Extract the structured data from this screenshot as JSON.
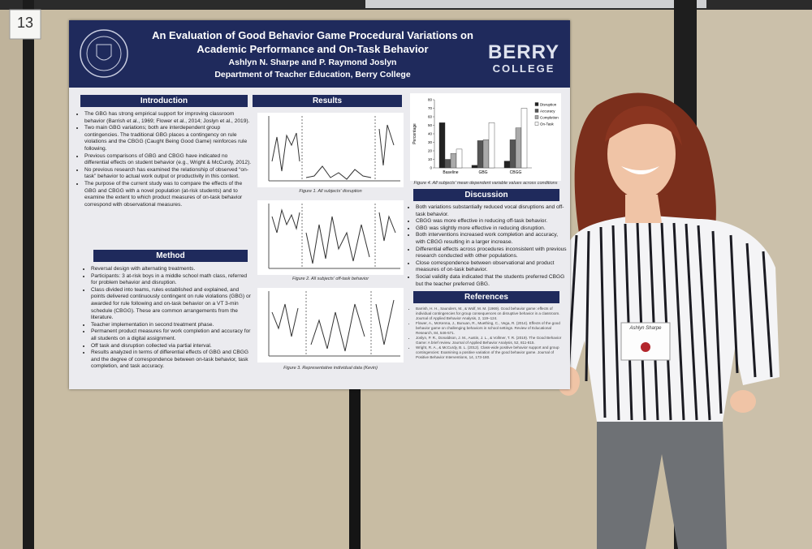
{
  "card_number": "13",
  "poster": {
    "title": "An Evaluation of Good Behavior Game Procedural Variations on Academic Performance and On-Task Behavior",
    "authors": "Ashlyn N. Sharpe and P. Raymond Joslyn",
    "affiliation": "Department of Teacher Education, Berry College",
    "logo": [
      "BERRY",
      "COLLEGE"
    ],
    "introduction": {
      "heading": "Introduction",
      "bullets": [
        "The GBG has strong empirical support for improving classroom behavior (Barrish et al., 1969; Flower et al., 2014; Joslyn et al., 2019).",
        "Two main GBG variations; both are interdependent group contingencies. The traditional GBG places a contingency on rule violations and the CBGG (Caught Being Good Game) reinforces rule following.",
        "Previous comparisons of GBG and CBGG have indicated no differential effects on student behavior (e.g., Wright & McCurdy, 2012).",
        "No previous research has examined the relationship of observed “on-task” behavior to actual work output or productivity in this context.",
        "The purpose of the current study was to compare the effects of the GBG and CBGG with a novel population (at-risk students) and to examine the extent to which product measures of on-task behavior correspond with observational measures."
      ]
    },
    "method": {
      "heading": "Method",
      "bullets": [
        "Reversal design with alternating treatments.",
        "Participants: 3 at-risk boys in a middle school math class, referred for problem behavior and disruption.",
        "Class divided into teams, rules established and explained, and points delivered continuously contingent on rule violations (GBG) or awarded for rule following and on-task behavior on a VT 3-min schedule (CBGG). These are common arrangements from the literature.",
        "Teacher implementation in second treatment phase.",
        "Permanent product measures for work completion and accuracy for all students on a digital assignment.",
        "Off task and disruption collected via partial interval.",
        "Results analyzed in terms of differential effects of GBG and CBGG and the degree of correspondence between on-task behavior, task completion, and task accuracy."
      ]
    },
    "results": {
      "heading": "Results",
      "captions": [
        "Figure 1. All subjects' disruption",
        "Figure 2. All subjects' off-task behavior",
        "Figure 3. Representative individual data (Kevin)"
      ]
    },
    "figure_4": {
      "type": "bar",
      "caption": "Figure 4. All subjects' mean dependent variable values across conditions",
      "ylabel": "Percentage",
      "categories": [
        "Baseline",
        "GBG",
        "CBGG"
      ],
      "ylim": [
        0,
        80
      ],
      "yticks": [
        0,
        10,
        20,
        30,
        40,
        50,
        60,
        70,
        80
      ],
      "series": [
        {
          "name": "Disruption",
          "color": "#222222",
          "values": [
            53,
            3,
            8
          ]
        },
        {
          "name": "Accuracy",
          "color": "#555555",
          "values": [
            10,
            32,
            33
          ]
        },
        {
          "name": "Completion",
          "color": "#aaaaaa",
          "values": [
            17,
            33,
            47
          ]
        },
        {
          "name": "On-Task",
          "color": "#ffffff",
          "values": [
            22,
            53,
            70
          ]
        }
      ]
    },
    "discussion": {
      "heading": "Discussion",
      "bullets": [
        "Both variations substantially reduced vocal disruptions and off-task behavior.",
        "CBGG was more effective in reducing off-task behavior.",
        "GBG was slightly more effective in reducing disruption.",
        "Both interventions increased work completion and accuracy, with CBGG resulting in a larger increase.",
        "Differential effects across procedures inconsistent with previous research conducted with other populations.",
        "Close correspondence between observational and product measures of on-task behavior.",
        "Social validity data indicated that the students preferred CBGG but the teacher preferred GBG."
      ]
    },
    "references": {
      "heading": "References",
      "bullets": [
        "Barrish, H. H., Saunders, M., & Wolf, M. M. (1969). Good behavior game: effects of individual contingencies for group consequences on disruptive behavior in a classroom. Journal of Applied Behavior Analysis, 2, 119–124.",
        "Flower, A., McKenna, J., Bunuan, R., Muething, C., Vega, R. (2014). Effects of the good behavior game on challenging behaviors in school settings. Review of Educational Research, 84, 546-571.",
        "Joslyn, P. R., Donaldson, J. M., Austin, J. L., & Vollmer, T. R. (2019). The Good Behavior Game: A brief review. Journal of Applied Behavior Analysis, 52, 811-815.",
        "Wright, R. A., & McCurdy, B. L. (2012). Class-wide positive behavior support and group contingencies: Examining a positive variation of the good behavior game. Journal of Positive Behavior Interventions, 14, 173-180."
      ]
    }
  },
  "name_tag": "Ashlyn Sharpe"
}
